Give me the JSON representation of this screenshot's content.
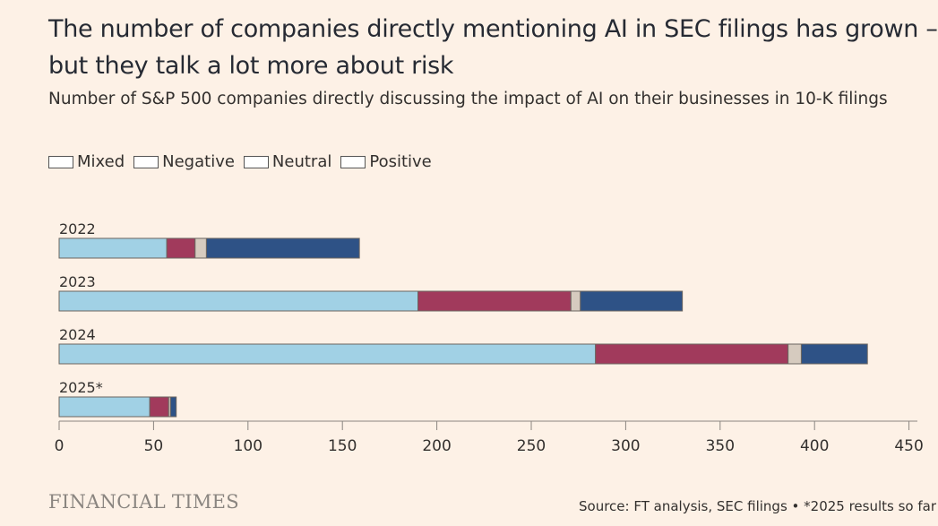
{
  "title_lines": [
    "The number of companies directly mentioning AI in SEC filings has grown –",
    "but they talk a lot more about risk"
  ],
  "subtitle": "Number of S&P 500 companies directly discussing the impact of AI on their businesses in 10-K filings",
  "logo": "FINANCIAL TIMES",
  "source": "Source: FT analysis, SEC filings • *2025 results so far",
  "chart_data": {
    "type": "bar",
    "orientation": "horizontal",
    "stacked": true,
    "categories": [
      "2022",
      "2023",
      "2024",
      "2025*"
    ],
    "series": [
      {
        "name": "Mixed",
        "color": "#a1d1e5",
        "values": [
          57,
          190,
          284,
          48
        ]
      },
      {
        "name": "Negative",
        "color": "#a13a5c",
        "values": [
          15,
          81,
          102,
          10
        ]
      },
      {
        "name": "Neutral",
        "color": "#d6cbbf",
        "values": [
          6,
          5,
          7,
          1
        ]
      },
      {
        "name": "Positive",
        "color": "#2e5286",
        "values": [
          81,
          54,
          35,
          3
        ]
      }
    ],
    "xlim": [
      0,
      450
    ],
    "xticks": [
      0,
      50,
      100,
      150,
      200,
      250,
      300,
      350,
      400,
      450
    ],
    "legend": "top-left",
    "grid": false
  }
}
